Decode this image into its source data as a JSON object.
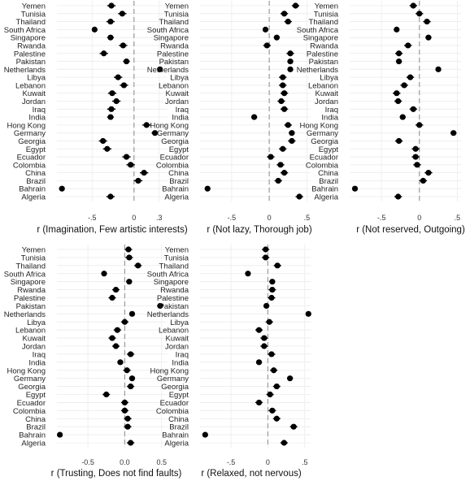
{
  "countries": [
    "Yemen",
    "Tunisia",
    "Thailand",
    "South Africa",
    "Singapore",
    "Rwanda",
    "Palestine",
    "Pakistan",
    "Netherlands",
    "Libya",
    "Lebanon",
    "Kuwait",
    "Jordan",
    "Iraq",
    "India",
    "Hong Kong",
    "Germany",
    "Georgia",
    "Egypt",
    "Ecuador",
    "Colombia",
    "China",
    "Brazil",
    "Bahrain",
    "Algeria"
  ],
  "chart_data": [
    {
      "type": "scatter",
      "xlabel": "r (Imagination, Few artistic interests)",
      "ticks": [
        {
          "value": -0.5,
          "label": "-.5"
        },
        {
          "value": 0,
          "label": "0"
        },
        {
          "value": 0.3,
          "label": ".3"
        }
      ],
      "values": [
        -0.27,
        -0.14,
        -0.28,
        -0.47,
        -0.28,
        -0.13,
        -0.36,
        -0.09,
        0.31,
        -0.19,
        -0.12,
        -0.26,
        -0.21,
        -0.27,
        -0.28,
        0.15,
        0.25,
        -0.37,
        -0.32,
        -0.09,
        -0.04,
        0.12,
        0.05,
        -0.86,
        -0.28
      ],
      "ci": [
        0.05,
        0.05,
        0.05,
        0.03,
        0.04,
        0.05,
        0.05,
        0.04,
        0.02,
        0.05,
        0.05,
        0.05,
        0.05,
        0.05,
        0.04,
        0.05,
        0.04,
        0.05,
        0.05,
        0.05,
        0.05,
        0.05,
        0.05,
        0.03,
        0.05
      ]
    },
    {
      "type": "scatter",
      "xlabel": "r (Not lazy, Thorough job)",
      "ticks": [
        {
          "value": -0.5,
          "label": "-.5"
        },
        {
          "value": 0,
          "label": "0"
        },
        {
          "value": 0.5,
          "label": ".5"
        }
      ],
      "values": [
        0.35,
        0.2,
        0.25,
        -0.05,
        0.1,
        -0.03,
        0.28,
        0.28,
        0.28,
        0.18,
        0.18,
        0.2,
        0.16,
        0.2,
        -0.2,
        0.25,
        0.3,
        0.3,
        0.18,
        0.02,
        0.15,
        0.2,
        0.12,
        -0.82,
        0.4
      ],
      "ci": [
        0.05,
        0.05,
        0.05,
        0.03,
        0.04,
        0.05,
        0.05,
        0.04,
        0.02,
        0.05,
        0.05,
        0.05,
        0.05,
        0.05,
        0.04,
        0.05,
        0.04,
        0.05,
        0.05,
        0.05,
        0.05,
        0.05,
        0.05,
        0.03,
        0.05
      ]
    },
    {
      "type": "scatter",
      "xlabel": "r (Not reserved, Outgoing)",
      "ticks": [
        {
          "value": -0.5,
          "label": "-.5"
        },
        {
          "value": 0,
          "label": "0"
        },
        {
          "value": 0.5,
          "label": ".5"
        }
      ],
      "values": [
        -0.08,
        0.0,
        0.1,
        -0.3,
        0.12,
        -0.15,
        -0.27,
        -0.27,
        0.25,
        -0.12,
        -0.2,
        -0.3,
        -0.28,
        -0.08,
        -0.22,
        0.0,
        0.45,
        -0.27,
        -0.05,
        -0.05,
        -0.03,
        0.12,
        0.05,
        -0.85,
        -0.28
      ],
      "ci": [
        0.05,
        0.05,
        0.05,
        0.03,
        0.04,
        0.05,
        0.05,
        0.04,
        0.02,
        0.05,
        0.05,
        0.05,
        0.05,
        0.05,
        0.04,
        0.05,
        0.04,
        0.05,
        0.05,
        0.05,
        0.05,
        0.05,
        0.05,
        0.03,
        0.05
      ]
    },
    {
      "type": "scatter",
      "xlabel": "r (Trusting, Does not find faults)",
      "ticks": [
        {
          "value": -0.5,
          "label": "-0.5"
        },
        {
          "value": 0,
          "label": "0.0"
        },
        {
          "value": 0.5,
          "label": "0.5"
        }
      ],
      "values": [
        0.05,
        0.06,
        0.18,
        -0.28,
        0.06,
        -0.12,
        -0.17,
        0.48,
        0.1,
        0.0,
        -0.1,
        -0.17,
        -0.12,
        0.08,
        -0.06,
        0.03,
        0.1,
        0.08,
        -0.25,
        0.0,
        0.0,
        0.04,
        0.04,
        -0.88,
        0.08
      ],
      "ci": [
        0.05,
        0.05,
        0.05,
        0.03,
        0.04,
        0.05,
        0.05,
        0.04,
        0.02,
        0.05,
        0.05,
        0.05,
        0.05,
        0.05,
        0.04,
        0.05,
        0.04,
        0.05,
        0.05,
        0.05,
        0.05,
        0.05,
        0.05,
        0.03,
        0.05
      ]
    },
    {
      "type": "scatter",
      "xlabel": "r (Relaxed, not nervous)",
      "ticks": [
        {
          "value": -0.5,
          "label": "-.5"
        },
        {
          "value": 0,
          "label": "0"
        },
        {
          "value": 0.5,
          "label": ".5"
        }
      ],
      "values": [
        -0.03,
        -0.03,
        0.13,
        -0.27,
        0.06,
        0.06,
        0.05,
        -0.02,
        0.55,
        0.02,
        -0.12,
        -0.05,
        -0.05,
        0.05,
        -0.12,
        0.08,
        0.3,
        0.12,
        0.03,
        -0.12,
        0.06,
        0.12,
        0.35,
        -0.85,
        0.22
      ],
      "ci": [
        0.05,
        0.05,
        0.05,
        0.03,
        0.04,
        0.05,
        0.05,
        0.04,
        0.02,
        0.05,
        0.05,
        0.05,
        0.05,
        0.05,
        0.04,
        0.05,
        0.04,
        0.05,
        0.05,
        0.05,
        0.05,
        0.05,
        0.05,
        0.03,
        0.05
      ]
    }
  ]
}
